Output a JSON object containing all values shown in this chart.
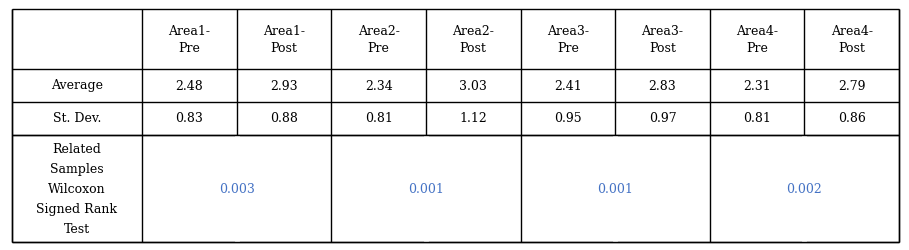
{
  "col_headers": [
    "",
    "Area1-\nPre",
    "Area1-\nPost",
    "Area2-\nPre",
    "Area2-\nPost",
    "Area3-\nPre",
    "Area3-\nPost",
    "Area4-\nPre",
    "Area4-\nPost"
  ],
  "row1_label": "Average",
  "row1_values": [
    "2.48",
    "2.93",
    "2.34",
    "3.03",
    "2.41",
    "2.83",
    "2.31",
    "2.79"
  ],
  "row2_label": "St. Dev.",
  "row2_values": [
    "0.83",
    "0.88",
    "0.81",
    "1.12",
    "0.95",
    "0.97",
    "0.81",
    "0.86"
  ],
  "row3_label": "Related\nSamples\nWilcoxon\nSigned Rank\nTest",
  "row3_values": [
    "0.003",
    "0.001",
    "0.001",
    "0.002"
  ],
  "text_color": "#000000",
  "p_value_color": "#4472C4",
  "border_color": "#000000",
  "bg_color": "#FFFFFF",
  "font_size": 9.0,
  "header_font_size": 9.0
}
